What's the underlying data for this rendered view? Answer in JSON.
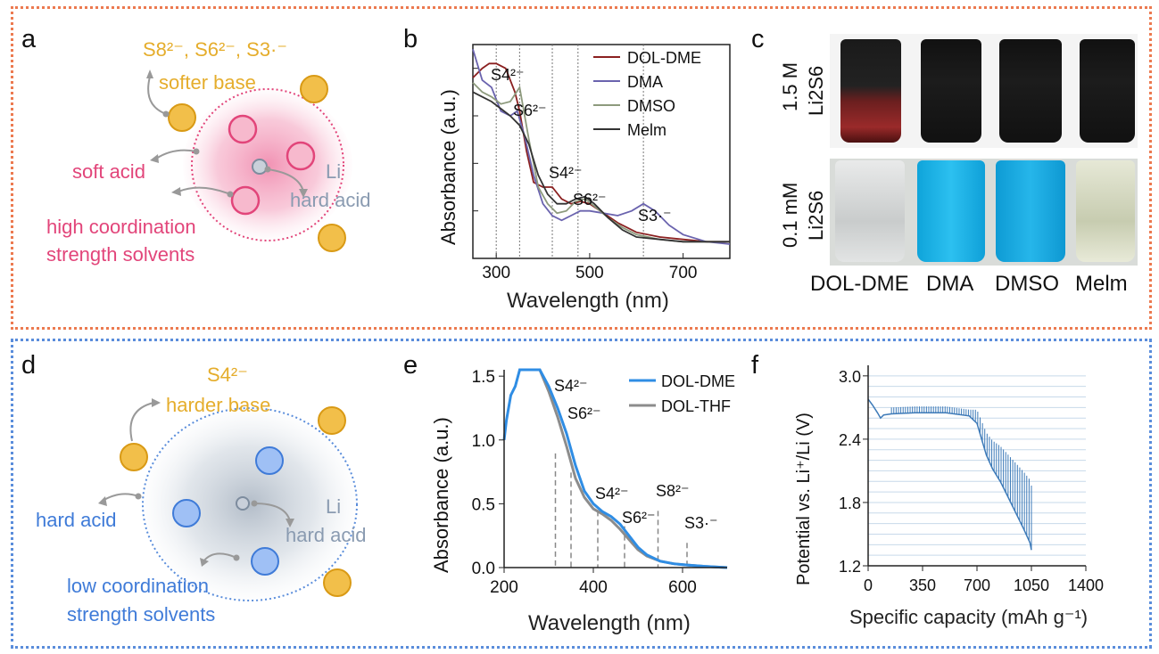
{
  "panels": {
    "a": {
      "label": "a",
      "species": "S8²⁻, S6²⁻, S3·⁻",
      "softer_base": "softer base",
      "li": "Li",
      "soft_acid": "soft acid",
      "hard_acid": "hard acid",
      "high_coord_1": "high coordination",
      "high_coord_2": "strength solvents"
    },
    "b": {
      "label": "b",
      "ylabel": "Absorbance (a.u.)",
      "xlabel": "Wavelength (nm)",
      "annotations": [
        "S4²⁻",
        "S6²⁻",
        "S4²⁻",
        "S6²⁻",
        "S3·⁻"
      ]
    },
    "c": {
      "label": "c",
      "row1_label_a": "1.5 M",
      "row1_label_b": "Li2S6",
      "row2_label_a": "0.1 mM",
      "row2_label_b": "Li2S6",
      "solvents": [
        "DOL-DME",
        "DMA",
        "DMSO",
        "Melm"
      ]
    },
    "d": {
      "label": "d",
      "species": "S4²⁻",
      "harder_base": "harder base",
      "li": "Li",
      "hard_acid_left": "hard acid",
      "hard_acid": "hard acid",
      "low_coord_1": "low coordination",
      "low_coord_2": "strength solvents"
    },
    "e": {
      "label": "e",
      "ylabel": "Absorbance (a.u.)",
      "xlabel": "Wavelength (nm)",
      "annotations": [
        "S4²⁻",
        "S6²⁻",
        "S4²⁻",
        "S6²⁻",
        "S8²⁻",
        "S3·⁻"
      ]
    },
    "f": {
      "label": "f",
      "ylabel": "Potential vs. Li⁺/Li (V)",
      "xlabel": "Specific capacity (mAh g⁻¹)"
    }
  },
  "colors": {
    "top_border": "#ec7a50",
    "bottom_border": "#5a8ddb",
    "pink": "#e2457a",
    "gold": "#e5ad2c",
    "blue": "#3f7bd8"
  },
  "chart_data": [
    {
      "id": "b",
      "type": "line",
      "xlabel": "Wavelength (nm)",
      "ylabel": "Absorbance (a.u.)",
      "xlim": [
        250,
        800
      ],
      "xticks": [
        300,
        500,
        700
      ],
      "yticks_labeled": false,
      "legend": "top-right",
      "reference_lines_x": [
        300,
        350,
        420,
        475,
        615
      ],
      "series": [
        {
          "name": "DOL-DME",
          "color": "#8b2020",
          "x": [
            250,
            270,
            285,
            300,
            320,
            340,
            350,
            365,
            380,
            400,
            420,
            440,
            460,
            480,
            500,
            530,
            560,
            600,
            650,
            700,
            750,
            800
          ],
          "y": [
            0.86,
            0.9,
            0.92,
            0.92,
            0.9,
            0.8,
            0.72,
            0.55,
            0.42,
            0.4,
            0.4,
            0.35,
            0.33,
            0.34,
            0.33,
            0.29,
            0.25,
            0.21,
            0.19,
            0.18,
            0.17,
            0.17
          ]
        },
        {
          "name": "DMA",
          "color": "#6a63ae",
          "x": [
            250,
            270,
            290,
            310,
            330,
            345,
            360,
            380,
            400,
            420,
            440,
            460,
            480,
            500,
            530,
            560,
            590,
            615,
            640,
            670,
            700,
            750,
            800
          ],
          "y": [
            0.98,
            0.85,
            0.82,
            0.72,
            0.7,
            0.72,
            0.62,
            0.45,
            0.33,
            0.28,
            0.26,
            0.28,
            0.3,
            0.3,
            0.29,
            0.28,
            0.3,
            0.33,
            0.3,
            0.24,
            0.2,
            0.17,
            0.16
          ]
        },
        {
          "name": "DMSO",
          "color": "#8d9a7d",
          "x": [
            250,
            270,
            290,
            310,
            330,
            350,
            370,
            390,
            410,
            430,
            450,
            470,
            490,
            510,
            540,
            570,
            600,
            650,
            700,
            750,
            800
          ],
          "y": [
            0.84,
            0.8,
            0.78,
            0.75,
            0.76,
            0.82,
            0.6,
            0.4,
            0.33,
            0.29,
            0.3,
            0.34,
            0.35,
            0.32,
            0.27,
            0.23,
            0.2,
            0.18,
            0.17,
            0.17,
            0.17
          ]
        },
        {
          "name": "Melm",
          "color": "#333333",
          "x": [
            250,
            270,
            290,
            310,
            330,
            350,
            370,
            390,
            410,
            430,
            450,
            470,
            490,
            510,
            540,
            570,
            600,
            650,
            700,
            750,
            800
          ],
          "y": [
            0.8,
            0.78,
            0.76,
            0.73,
            0.7,
            0.66,
            0.58,
            0.45,
            0.37,
            0.33,
            0.33,
            0.35,
            0.36,
            0.33,
            0.27,
            0.22,
            0.19,
            0.18,
            0.17,
            0.17,
            0.17
          ]
        }
      ]
    },
    {
      "id": "e",
      "type": "line",
      "xlabel": "Wavelength (nm)",
      "ylabel": "Absorbance (a.u.)",
      "xlim": [
        200,
        700
      ],
      "ylim": [
        0,
        1.55
      ],
      "xticks": [
        200,
        400,
        600
      ],
      "yticks": [
        0.0,
        0.5,
        1.0,
        1.5
      ],
      "legend": "top-right",
      "reference_lines_x": [
        315,
        350,
        410,
        470,
        545,
        610
      ],
      "series": [
        {
          "name": "DOL-DME",
          "color": "#2f8de4",
          "x": [
            200,
            205,
            215,
            225,
            235,
            245,
            280,
            300,
            320,
            340,
            360,
            380,
            400,
            420,
            440,
            460,
            480,
            500,
            520,
            550,
            580,
            610,
            650,
            700
          ],
          "y": [
            1.0,
            1.15,
            1.35,
            1.42,
            1.55,
            1.55,
            1.55,
            1.42,
            1.25,
            1.05,
            0.8,
            0.6,
            0.5,
            0.44,
            0.4,
            0.34,
            0.25,
            0.16,
            0.1,
            0.05,
            0.03,
            0.02,
            0.01,
            0.0
          ]
        },
        {
          "name": "DOL-THF",
          "color": "#8c8c8c",
          "x": [
            240,
            280,
            300,
            320,
            340,
            360,
            380,
            400,
            420,
            440,
            460,
            480,
            500,
            520,
            550,
            580,
            610,
            650,
            700
          ],
          "y": [
            1.55,
            1.55,
            1.38,
            1.18,
            0.95,
            0.7,
            0.55,
            0.46,
            0.42,
            0.37,
            0.3,
            0.22,
            0.14,
            0.09,
            0.05,
            0.03,
            0.02,
            0.01,
            0.0
          ]
        }
      ]
    },
    {
      "id": "f",
      "type": "line",
      "xlabel": "Specific capacity (mAh g⁻¹)",
      "ylabel": "Potential vs. Li⁺/Li (V)",
      "xlim": [
        0,
        1400
      ],
      "ylim": [
        1.2,
        3.1
      ],
      "xticks": [
        0,
        350,
        700,
        1050,
        1400
      ],
      "yticks": [
        1.2,
        1.8,
        2.4,
        3.0
      ],
      "grid": true,
      "series": [
        {
          "name": "",
          "color": "#3d7ab8",
          "x": [
            0,
            30,
            60,
            80,
            100,
            150,
            300,
            500,
            650,
            700,
            730,
            760,
            800,
            850,
            900,
            950,
            1000,
            1040,
            1050
          ],
          "y": [
            2.78,
            2.72,
            2.65,
            2.6,
            2.63,
            2.64,
            2.65,
            2.65,
            2.62,
            2.55,
            2.4,
            2.25,
            2.12,
            2.0,
            1.85,
            1.7,
            1.55,
            1.42,
            1.35
          ]
        }
      ]
    }
  ]
}
